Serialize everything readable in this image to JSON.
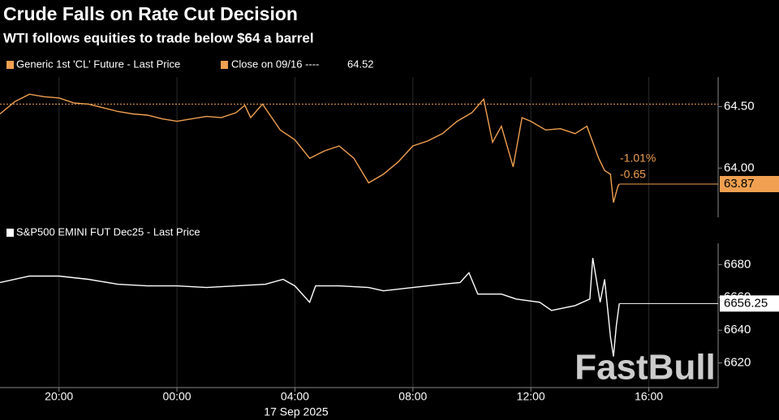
{
  "title": "Crude Falls on Rate Cut Decision",
  "subtitle": "WTI follows equities to trade below $64 a barrel",
  "watermark": "FastBull",
  "chart_data": [
    {
      "type": "line",
      "x": [
        0,
        0.5,
        1,
        1.5,
        2,
        2.5,
        3,
        3.5,
        4,
        4.5,
        5,
        5.5,
        6,
        6.5,
        7,
        7.5,
        8,
        8.3,
        8.5,
        8.9,
        9.5,
        10,
        10.5,
        11,
        11.5,
        12,
        12.5,
        13,
        13.5,
        14,
        14.5,
        15,
        15.5,
        16,
        16.4,
        16.7,
        17,
        17.4,
        17.7,
        18,
        18.5,
        19,
        19.5,
        19.9,
        20.3,
        20.5,
        20.7,
        20.8,
        20.95,
        21
      ],
      "series": [
        {
          "name": "Generic 1st 'CL' Future - Last Price",
          "color": "#f0a050",
          "values": [
            64.44,
            64.54,
            64.6,
            64.58,
            64.57,
            64.53,
            64.52,
            64.49,
            64.46,
            64.44,
            64.43,
            64.4,
            64.38,
            64.4,
            64.42,
            64.41,
            64.45,
            64.51,
            64.41,
            64.52,
            64.31,
            64.23,
            64.08,
            64.14,
            64.18,
            64.08,
            63.88,
            63.95,
            64.05,
            64.18,
            64.22,
            64.28,
            64.38,
            64.45,
            64.56,
            64.21,
            64.34,
            64.01,
            64.41,
            64.38,
            64.31,
            64.32,
            64.28,
            64.34,
            64.08,
            63.98,
            63.95,
            63.72,
            63.85,
            63.87
          ]
        }
      ],
      "close_label": "Close on 09/16 ----",
      "close_value": 64.52,
      "annotations": [
        "-1.01%",
        "-0.65"
      ],
      "xlim": [
        0,
        24.35
      ],
      "ylim": [
        63.6,
        64.74
      ],
      "yticks": [
        {
          "value": 64.0,
          "label": "64.00"
        },
        {
          "value": 64.5,
          "label": "64.50"
        }
      ]
    },
    {
      "type": "line",
      "x": [
        0,
        1,
        2,
        3,
        4,
        5,
        6,
        7,
        8,
        9,
        9.6,
        10,
        10.5,
        10.7,
        11.5,
        12.5,
        13,
        14,
        15,
        15.6,
        15.9,
        16.2,
        17,
        17.5,
        18.3,
        18.7,
        19.5,
        20,
        20.1,
        20.35,
        20.5,
        20.7,
        20.8,
        20.9,
        21
      ],
      "series": [
        {
          "name": "S&P500 EMINI FUT Dec25 - Last Price",
          "color": "#ffffff",
          "values": [
            6669,
            6673,
            6673,
            6671,
            6668,
            6667,
            6667,
            6666,
            6667,
            6668,
            6671,
            6667,
            6657,
            6667,
            6667,
            6666,
            6664,
            6666,
            6668,
            6669,
            6675,
            6662,
            6662,
            6659,
            6657,
            6652,
            6655,
            6659,
            6684,
            6657,
            6671,
            6636,
            6624,
            6643,
            6656.25
          ]
        }
      ],
      "xlim": [
        0,
        24.35
      ],
      "ylim": [
        6605,
        6693
      ],
      "yticks": [
        6620,
        6640,
        6660,
        6680
      ],
      "xticks": [
        {
          "value": 2,
          "label": "20:00"
        },
        {
          "value": 6,
          "label": "00:00"
        },
        {
          "value": 10,
          "label": "04:00"
        },
        {
          "value": 14,
          "label": "08:00"
        },
        {
          "value": 18,
          "label": "12:00"
        },
        {
          "value": 22,
          "label": "16:00"
        }
      ],
      "date_label": "17 Sep 2025"
    }
  ]
}
